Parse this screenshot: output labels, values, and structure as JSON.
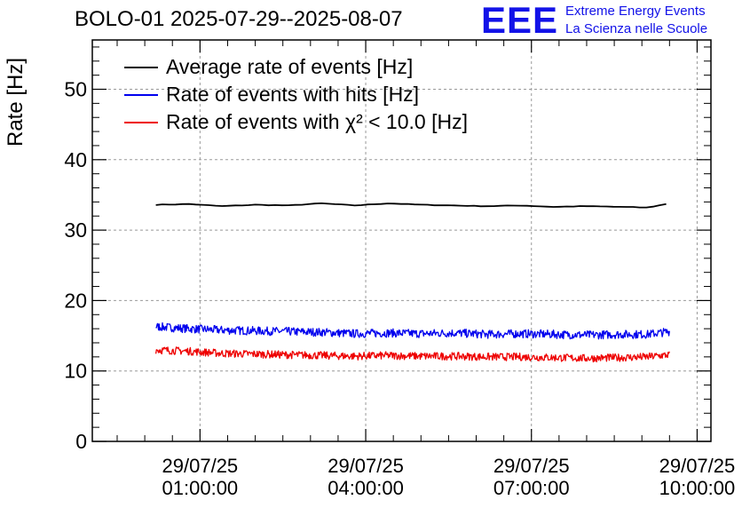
{
  "title": "BOLO-01 2025-07-29--2025-08-07",
  "logo": {
    "mark": "EEE",
    "line1": "Extreme Energy Events",
    "line2": "La Scienza nelle Scuole",
    "color": "#1212e8"
  },
  "chart_data": {
    "type": "line",
    "ylabel": "Rate [Hz]",
    "xlabel": "",
    "ylim": [
      0,
      57
    ],
    "xlim_hours": [
      -0.95,
      10.25
    ],
    "yticks": [
      0,
      10,
      20,
      30,
      40,
      50
    ],
    "xticks": [
      {
        "hour": 1,
        "line1": "29/07/25",
        "line2": "01:00:00"
      },
      {
        "hour": 4,
        "line1": "29/07/25",
        "line2": "04:00:00"
      },
      {
        "hour": 7,
        "line1": "29/07/25",
        "line2": "07:00:00"
      },
      {
        "hour": 10,
        "line1": "29/07/25",
        "line2": "10:00:00"
      }
    ],
    "grid": true,
    "legend_position": "top-left",
    "series": [
      {
        "name": "Average rate of events [Hz]",
        "color": "#000000",
        "x_hours": [
          0.2,
          0.8,
          1.4,
          2.0,
          2.6,
          3.2,
          3.8,
          4.4,
          5.0,
          5.6,
          6.2,
          6.8,
          7.4,
          8.0,
          8.6,
          9.1,
          9.5
        ],
        "values": [
          33.6,
          33.7,
          33.4,
          33.6,
          33.5,
          33.8,
          33.5,
          33.8,
          33.6,
          33.5,
          33.4,
          33.5,
          33.3,
          33.4,
          33.3,
          33.2,
          33.8
        ]
      },
      {
        "name": "Rate of events with hits [Hz]",
        "color": "#0000ee",
        "x_hours": [
          0.2,
          0.8,
          1.4,
          2.0,
          2.6,
          3.2,
          3.8,
          4.4,
          5.0,
          5.6,
          6.2,
          6.8,
          7.4,
          8.0,
          8.6,
          9.1,
          9.5
        ],
        "values": [
          16.3,
          16.0,
          15.8,
          15.7,
          15.6,
          15.5,
          15.3,
          15.4,
          15.3,
          15.4,
          15.2,
          15.3,
          15.2,
          15.1,
          15.2,
          15.2,
          15.6
        ]
      },
      {
        "name": "Rate of events with χ² < 10.0 [Hz]",
        "color": "#ee0000",
        "x_hours": [
          0.2,
          0.8,
          1.4,
          2.0,
          2.6,
          3.2,
          3.8,
          4.4,
          5.0,
          5.6,
          6.2,
          6.8,
          7.4,
          8.0,
          8.6,
          9.1,
          9.5
        ],
        "values": [
          13.0,
          12.8,
          12.5,
          12.4,
          12.3,
          12.2,
          12.1,
          12.2,
          12.1,
          12.1,
          12.0,
          12.0,
          11.9,
          11.8,
          11.9,
          12.0,
          12.3
        ]
      }
    ]
  }
}
